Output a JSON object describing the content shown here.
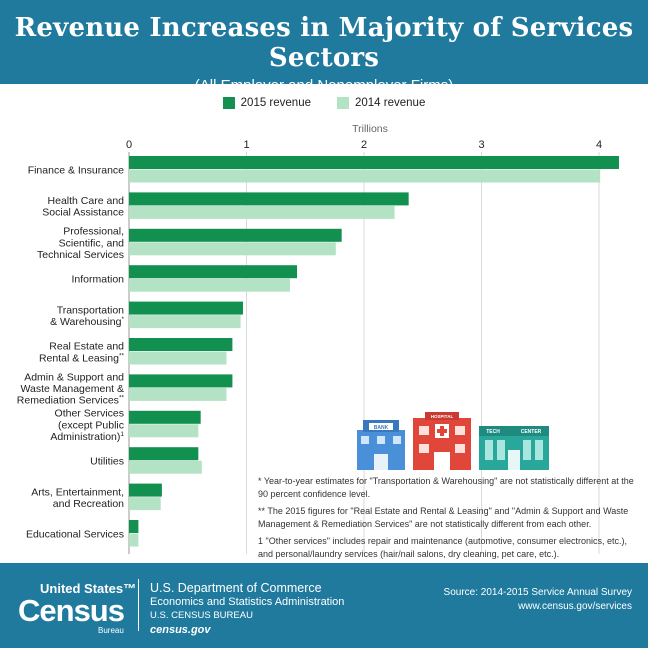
{
  "header": {
    "title": "Revenue Increases in Majority of Services Sectors",
    "subtitle": "(All Employer and Nonemployer Firms)"
  },
  "colors": {
    "header_bg": "#1f7a9e",
    "series_2015": "#12904f",
    "series_2014": "#b3e3c4"
  },
  "chart_data": {
    "type": "bar",
    "orientation": "horizontal",
    "xlabel": "Trillions",
    "xlim": [
      0,
      4.2
    ],
    "x_ticks": [
      "0",
      "1",
      "2",
      "3",
      "4"
    ],
    "grid": true,
    "legend_position": "top-center",
    "categories": [
      {
        "lines": [
          "Finance & Insurance"
        ],
        "sup": ""
      },
      {
        "lines": [
          "Health Care and",
          "Social Assistance"
        ],
        "sup": ""
      },
      {
        "lines": [
          "Professional,",
          "Scientific, and",
          "Technical Services"
        ],
        "sup": ""
      },
      {
        "lines": [
          "Information"
        ],
        "sup": ""
      },
      {
        "lines": [
          "Transportation",
          "& Warehousing"
        ],
        "sup": "*"
      },
      {
        "lines": [
          "Real Estate and",
          "Rental & Leasing"
        ],
        "sup": "**"
      },
      {
        "lines": [
          "Admin & Support and",
          "Waste Management &",
          "Remediation Services"
        ],
        "sup": "**"
      },
      {
        "lines": [
          "Other Services",
          "(except Public",
          "Administration)"
        ],
        "sup": "1"
      },
      {
        "lines": [
          "Utilities"
        ],
        "sup": ""
      },
      {
        "lines": [
          "Arts, Entertainment,",
          "and Recreation"
        ],
        "sup": ""
      },
      {
        "lines": [
          "Educational Services"
        ],
        "sup": ""
      }
    ],
    "series": [
      {
        "name": "2015 revenue",
        "values": [
          4.17,
          2.38,
          1.81,
          1.43,
          0.97,
          0.88,
          0.88,
          0.61,
          0.59,
          0.28,
          0.08
        ]
      },
      {
        "name": "2014 revenue",
        "values": [
          4.01,
          2.26,
          1.76,
          1.37,
          0.95,
          0.83,
          0.83,
          0.59,
          0.62,
          0.27,
          0.08
        ]
      }
    ]
  },
  "illustration": {
    "bank_sign": "BANK",
    "hospital_sign": "HOSPITAL",
    "tech_sign": "TECH",
    "center_sign": "CENTER"
  },
  "footnotes": {
    "note1": "* Year-to-year estimates for \"Transportation & Warehousing\" are not statistically different at the 90 percent confidence level.",
    "note2": "** The 2015 figures for \"Real Estate and Rental & Leasing\" and \"Admin & Support and Waste Management & Remediation Services\" are not statistically different from each other.",
    "note3": "1 \"Other services\" includes repair and maintenance (automotive, consumer electronics, etc.), and personal/laundry services (hair/nail salons, dry cleaning, pet care, etc.)."
  },
  "footer": {
    "logo_line1": "United States™",
    "logo_line2": "Census",
    "logo_line3": "Bureau",
    "dept_line1": "U.S. Department of Commerce",
    "dept_line2": "Economics and Statistics Administration",
    "dept_line3": "U.S. CENSUS BUREAU",
    "dept_line4": "census.gov",
    "source_line1": "Source: 2014-2015 Service Annual Survey",
    "source_line2": "www.census.gov/services"
  }
}
